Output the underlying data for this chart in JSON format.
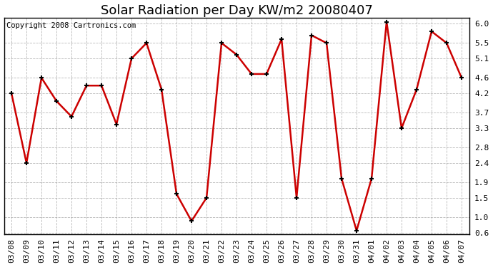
{
  "title": "Solar Radiation per Day KW/m2 20080407",
  "copyright_text": "Copyright 2008 Cartronics.com",
  "dates": [
    "03/08",
    "03/09",
    "03/10",
    "03/11",
    "03/12",
    "03/13",
    "03/14",
    "03/15",
    "03/16",
    "03/17",
    "03/18",
    "03/19",
    "03/20",
    "03/21",
    "03/22",
    "03/23",
    "03/24",
    "03/25",
    "03/26",
    "03/27",
    "03/28",
    "03/29",
    "03/30",
    "03/31",
    "04/01",
    "04/02",
    "04/03",
    "04/04",
    "04/05",
    "04/06",
    "04/07"
  ],
  "values": [
    4.2,
    2.4,
    4.6,
    4.0,
    3.6,
    4.4,
    4.4,
    3.4,
    5.1,
    5.5,
    4.3,
    1.6,
    0.9,
    1.5,
    5.5,
    5.2,
    4.7,
    4.7,
    5.6,
    1.5,
    5.7,
    5.5,
    2.0,
    0.65,
    2.0,
    6.05,
    3.3,
    4.3,
    5.8,
    5.5,
    4.6
  ],
  "line_color": "#cc0000",
  "marker": "+",
  "marker_size": 5,
  "marker_edge_width": 1.5,
  "line_width": 1.8,
  "bg_color": "#ffffff",
  "plot_bg_color": "#ffffff",
  "grid_color": "#999999",
  "title_fontsize": 13,
  "copyright_fontsize": 7.5,
  "yticks": [
    0.6,
    1.0,
    1.5,
    1.9,
    2.4,
    2.8,
    3.3,
    3.7,
    4.2,
    4.6,
    5.1,
    5.5,
    6.0
  ],
  "ylim": [
    0.55,
    6.15
  ],
  "tick_fontsize": 8,
  "xlabel_rotation": 90
}
